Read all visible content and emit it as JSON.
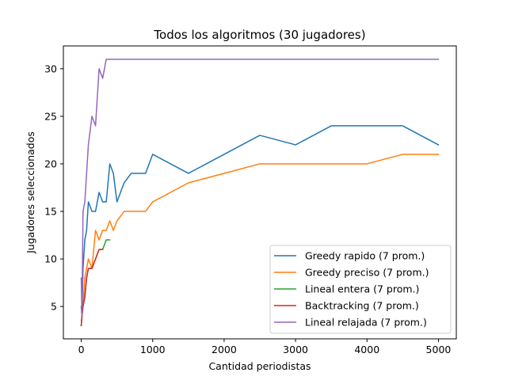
{
  "chart_data": {
    "type": "line",
    "title": "Todos los algoritmos (30 jugadores)",
    "xlabel": "Cantidad periodistas",
    "ylabel": "Jugadores seleccionados",
    "xlim": [
      -250,
      5250
    ],
    "ylim": [
      1.6,
      32.4
    ],
    "xticks": [
      0,
      1000,
      2000,
      3000,
      4000,
      5000
    ],
    "yticks": [
      5,
      10,
      15,
      20,
      25,
      30
    ],
    "grid": false,
    "legend_position": "lower-right",
    "series": [
      {
        "name": "Greedy rapido  (7 prom.)",
        "color": "#1f77b4",
        "x": [
          0,
          10,
          25,
          50,
          75,
          100,
          150,
          200,
          250,
          300,
          350,
          400,
          450,
          500,
          600,
          700,
          800,
          900,
          1000,
          1500,
          2000,
          2500,
          3000,
          3500,
          4000,
          4500,
          5000
        ],
        "y": [
          5,
          4,
          9,
          12,
          13,
          16,
          15,
          15,
          17,
          16,
          16,
          20,
          19,
          16,
          18,
          19,
          19,
          19,
          21,
          19,
          21,
          23,
          22,
          24,
          24,
          24,
          22
        ]
      },
      {
        "name": "Greedy preciso  (7 prom.)",
        "color": "#ff7f0e",
        "x": [
          0,
          10,
          25,
          50,
          75,
          100,
          150,
          200,
          250,
          300,
          350,
          400,
          450,
          500,
          600,
          700,
          800,
          900,
          1000,
          1500,
          2000,
          2500,
          3000,
          3500,
          4000,
          4500,
          5000
        ],
        "y": [
          3,
          4,
          5,
          8,
          9,
          10,
          9,
          13,
          12,
          13,
          13,
          14,
          13,
          14,
          15,
          15,
          15,
          15,
          16,
          18,
          19,
          20,
          20,
          20,
          20,
          21,
          21
        ]
      },
      {
        "name": "Lineal entera  (7 prom.)",
        "color": "#2ca02c",
        "x": [
          0,
          10,
          25,
          50,
          75,
          100,
          150,
          200,
          250,
          300,
          350,
          400
        ],
        "y": [
          3,
          4,
          5,
          6,
          8,
          9,
          9,
          10,
          11,
          11,
          12,
          12
        ]
      },
      {
        "name": "Backtracking (7 prom.)",
        "color": "#d62728",
        "x": [
          0,
          10,
          25,
          50,
          75,
          100,
          150,
          200,
          250,
          300
        ],
        "y": [
          3,
          4,
          5,
          6,
          8,
          9,
          9,
          10,
          11,
          11
        ]
      },
      {
        "name": "Lineal relajada  (7 prom.)",
        "color": "#9467bd",
        "x": [
          0,
          10,
          25,
          50,
          75,
          100,
          150,
          200,
          250,
          300,
          350,
          400,
          500,
          1000,
          2000,
          3000,
          4000,
          5000
        ],
        "y": [
          8,
          4,
          15,
          16,
          19,
          22,
          25,
          24,
          30,
          29,
          31,
          31,
          31,
          31,
          31,
          31,
          31,
          31
        ]
      }
    ]
  }
}
